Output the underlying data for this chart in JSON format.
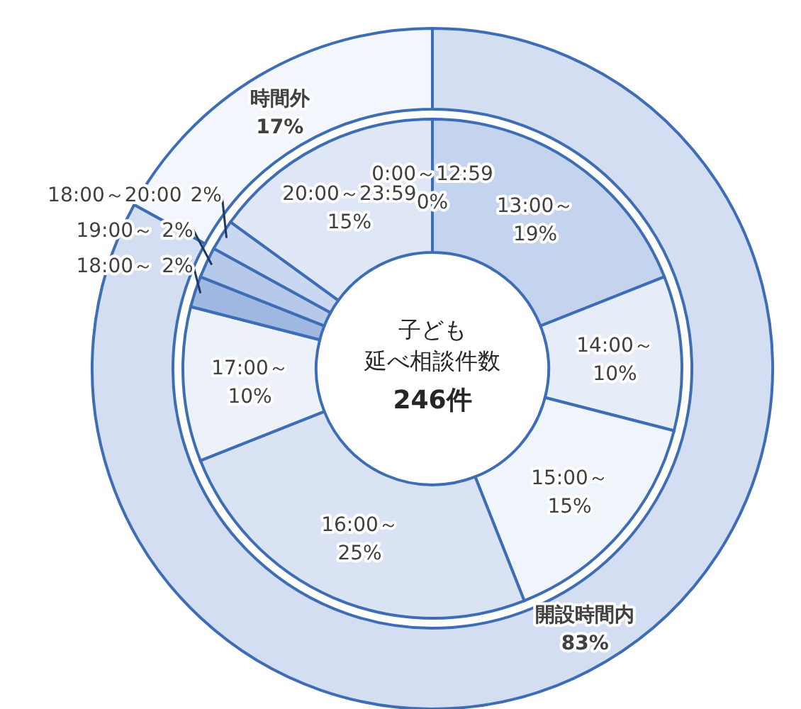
{
  "chart_data": [
    {
      "type": "donut",
      "categories": [
        "開設時間内",
        "時間外"
      ],
      "values": [
        83,
        17
      ],
      "value_labels": [
        "83%",
        "17%"
      ],
      "colors": [
        "#d3def2",
        "#f3f6fc"
      ]
    },
    {
      "type": "donut",
      "title": "子ども延べ相談件数",
      "subtitle": "246件",
      "categories": [
        "0:00～12:59",
        "13:00～",
        "14:00～",
        "15:00～",
        "16:00～",
        "17:00～",
        "18:00～",
        "19:00～",
        "18:00～20:00",
        "20:00～23:59"
      ],
      "values": [
        0,
        19,
        10,
        15,
        25,
        10,
        2,
        2,
        2,
        15
      ],
      "value_labels": [
        "0%",
        "19%",
        "10%",
        "15%",
        "25%",
        "10%",
        "2%",
        "2%",
        "2%",
        "15%"
      ],
      "colors": [
        "#ffffff",
        "#c4d4ee",
        "#e6edf8",
        "#f0f4fb",
        "#d9e3f4",
        "#edf2fa",
        "#9fb8e2",
        "#b7c9ea",
        "#c9d7f0",
        "#dfe7f6"
      ]
    }
  ]
}
